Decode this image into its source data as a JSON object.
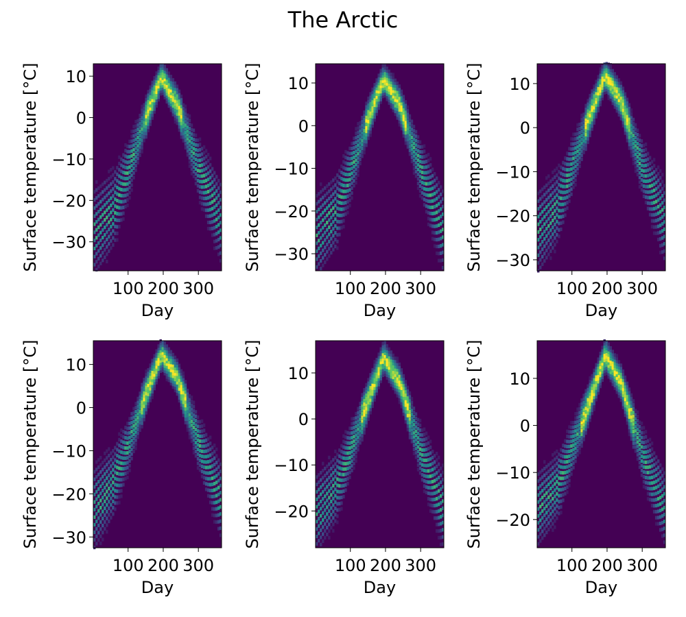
{
  "figure": {
    "title": "The Arctic"
  },
  "chart_data": [
    {
      "type": "heatmap",
      "xlabel": "Day",
      "ylabel": "Surface temperature [$^{\\circ}$C]",
      "xlim": [
        1,
        366
      ],
      "ylim": [
        -37,
        13
      ],
      "xticks": [
        100,
        200,
        300
      ],
      "yticks": [
        -30,
        -20,
        -10,
        0,
        10
      ],
      "colormap": "viridis",
      "series": [
        {
          "x_day": [
            1,
            60,
            100,
            150,
            195,
            240,
            300,
            366
          ],
          "y_temp": [
            -28,
            -22,
            -13,
            0,
            10,
            3,
            -12,
            -26
          ]
        }
      ]
    },
    {
      "type": "heatmap",
      "xlabel": "Day",
      "ylabel": "Surface temperature [$^{\\circ}$C]",
      "xlim": [
        1,
        366
      ],
      "ylim": [
        -34,
        14.5
      ],
      "xticks": [
        100,
        200,
        300
      ],
      "yticks": [
        -30,
        -20,
        -10,
        0,
        10
      ],
      "colormap": "viridis",
      "series": [
        {
          "x_day": [
            1,
            60,
            100,
            150,
            195,
            240,
            300,
            366
          ],
          "y_temp": [
            -26,
            -20,
            -11,
            1.5,
            11,
            5,
            -10,
            -25
          ]
        }
      ]
    },
    {
      "type": "heatmap",
      "xlabel": "Day",
      "ylabel": "Surface temperature [$^{\\circ}$C]",
      "xlim": [
        1,
        366
      ],
      "ylim": [
        -32.5,
        14.5
      ],
      "xticks": [
        100,
        200,
        300
      ],
      "yticks": [
        -30,
        -20,
        -10,
        0,
        10
      ],
      "colormap": "viridis",
      "series": [
        {
          "x_day": [
            1,
            60,
            100,
            150,
            195,
            240,
            300,
            366
          ],
          "y_temp": [
            -24,
            -18,
            -9,
            2.5,
            12,
            6,
            -9,
            -22
          ]
        }
      ]
    },
    {
      "type": "heatmap",
      "xlabel": "Day",
      "ylabel": "Surface temperature [$^{\\circ}$C]",
      "xlim": [
        1,
        366
      ],
      "ylim": [
        -32.5,
        15.5
      ],
      "xticks": [
        100,
        200,
        300
      ],
      "yticks": [
        -30,
        -20,
        -10,
        0,
        10
      ],
      "colormap": "viridis",
      "series": [
        {
          "x_day": [
            1,
            60,
            100,
            150,
            195,
            240,
            300,
            366
          ],
          "y_temp": [
            -24,
            -17,
            -9,
            3,
            12.5,
            7,
            -8,
            -22
          ]
        }
      ]
    },
    {
      "type": "heatmap",
      "xlabel": "Day",
      "ylabel": "Surface temperature [$^{\\circ}$C]",
      "xlim": [
        1,
        366
      ],
      "ylim": [
        -28,
        17
      ],
      "xticks": [
        100,
        200,
        300
      ],
      "yticks": [
        -20,
        -10,
        0,
        10
      ],
      "colormap": "viridis",
      "series": [
        {
          "x_day": [
            1,
            60,
            100,
            150,
            195,
            240,
            300,
            366
          ],
          "y_temp": [
            -21,
            -15,
            -7,
            4,
            13.5,
            8,
            -7,
            -20
          ]
        }
      ]
    },
    {
      "type": "heatmap",
      "xlabel": "Day",
      "ylabel": "Surface temperature [$^{\\circ}$C]",
      "xlim": [
        1,
        366
      ],
      "ylim": [
        -26,
        18
      ],
      "xticks": [
        100,
        200,
        300
      ],
      "yticks": [
        -20,
        -10,
        0,
        10
      ],
      "colormap": "viridis",
      "series": [
        {
          "x_day": [
            1,
            60,
            100,
            150,
            195,
            240,
            300,
            366
          ],
          "y_temp": [
            -18,
            -13,
            -5,
            5,
            15,
            9,
            -6,
            -18
          ]
        }
      ]
    }
  ]
}
